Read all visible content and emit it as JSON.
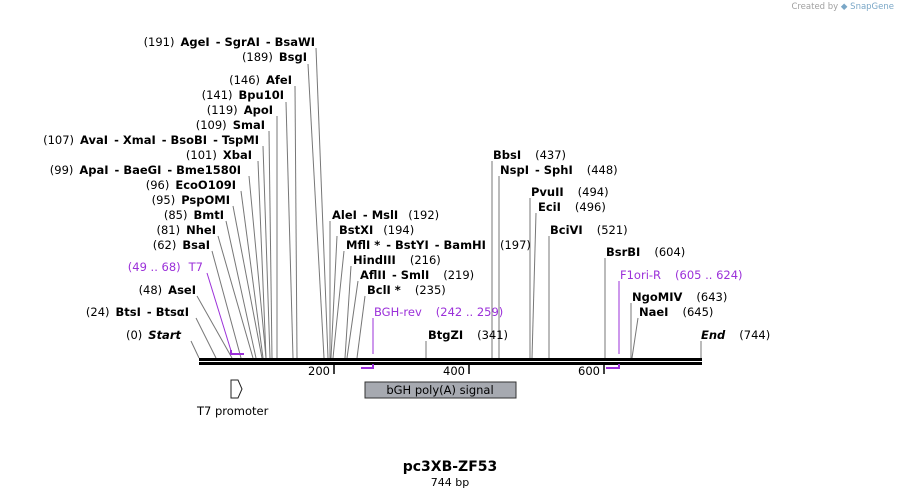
{
  "credit": {
    "prefix": "Created by",
    "brand": "SnapGene"
  },
  "title": "pc3XB-ZF53",
  "subtitle": "744 bp",
  "sequence_length": 744,
  "axis_ticks": [
    {
      "pos": 200,
      "label": "200"
    },
    {
      "pos": 400,
      "label": "400"
    },
    {
      "pos": 600,
      "label": "600"
    }
  ],
  "sites": [
    {
      "pos": 191,
      "text": "(191)  AgeI  - SgrAI  - BsaWI"
    },
    {
      "pos": 189,
      "text": "(189)  BsgI"
    },
    {
      "pos": 146,
      "text": "(146)  AfeI"
    },
    {
      "pos": 141,
      "text": "(141)  Bpu10I"
    },
    {
      "pos": 119,
      "text": "(119)  ApoI"
    },
    {
      "pos": 109,
      "text": "(109)  SmaI"
    },
    {
      "pos": 107,
      "text": "(107)  AvaI  - XmaI  - BsoBI  - TspMI"
    },
    {
      "pos": 101,
      "text": "(101)  XbaI"
    },
    {
      "pos": 99,
      "text": "(99)  ApaI  - BaeGI  - Bme1580I"
    },
    {
      "pos": 96,
      "text": "(96)  EcoO109I"
    },
    {
      "pos": 95,
      "text": "(95)  PspOMI"
    },
    {
      "pos": 85,
      "text": "(85)  BmtI"
    },
    {
      "pos": 81,
      "text": "(81)  NheI"
    },
    {
      "pos": 62,
      "text": "(62)  BsaI"
    },
    {
      "pos": 48,
      "text": "(48)  AseI"
    },
    {
      "pos": 24,
      "text": "(24)  BtsI  - BtsαI"
    },
    {
      "pos": 0,
      "text": "(0)  Start"
    },
    {
      "pos": 192,
      "text": "AleI  - MslI  (192)"
    },
    {
      "pos": 194,
      "text": "BstXI  (194)"
    },
    {
      "pos": 197,
      "text": "MflI * - BstYI  - BamHI  (197)"
    },
    {
      "pos": 216,
      "text": "HindIII  (216)"
    },
    {
      "pos": 219,
      "text": "AflII  - SmlI  (219)"
    },
    {
      "pos": 235,
      "text": "BclI *  (235)"
    },
    {
      "pos": 341,
      "text": "BtgZI  (341)"
    },
    {
      "pos": 437,
      "text": "BbsI  (437)"
    },
    {
      "pos": 448,
      "text": "NspI  - SphI  (448)"
    },
    {
      "pos": 494,
      "text": "PvuII  (494)"
    },
    {
      "pos": 496,
      "text": "EciI  (496)"
    },
    {
      "pos": 521,
      "text": "BciVI  (521)"
    },
    {
      "pos": 604,
      "text": "BsrBI  (604)"
    },
    {
      "pos": 643,
      "text": "NgoMIV  (643)"
    },
    {
      "pos": 645,
      "text": "NaeI  (645)"
    },
    {
      "pos": 744,
      "text": "End  (744)"
    }
  ],
  "primers": [
    {
      "name": "T7",
      "range": "(49 .. 68)",
      "start": 49,
      "end": 68,
      "strand": "forward",
      "color": "#9b30d9"
    },
    {
      "name": "BGH-rev",
      "range": "(242 .. 259)",
      "start": 242,
      "end": 259,
      "strand": "reverse",
      "color": "#9b30d9"
    },
    {
      "name": "F1ori-R",
      "range": "(605 .. 624)",
      "start": 605,
      "end": 624,
      "strand": "reverse",
      "color": "#9b30d9"
    }
  ],
  "features": [
    {
      "name": "T7 promoter",
      "start": 29,
      "end": 47,
      "type": "promoter",
      "color": "#ffffff"
    },
    {
      "name": "bGH poly(A) signal",
      "start": 225,
      "end": 449,
      "type": "polyA_signal",
      "color": "#a6a9b0"
    }
  ]
}
